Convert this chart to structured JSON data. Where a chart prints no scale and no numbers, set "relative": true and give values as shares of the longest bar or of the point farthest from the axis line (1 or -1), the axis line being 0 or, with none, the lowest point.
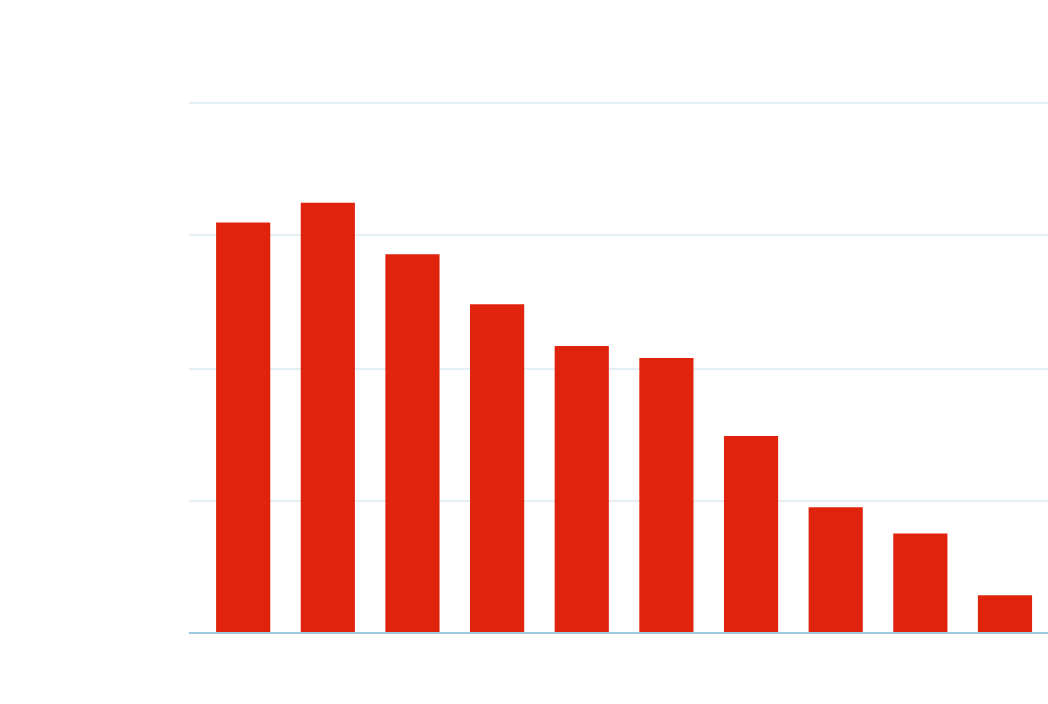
{
  "chart_data": {
    "type": "bar",
    "relative": true,
    "categories": [
      null,
      null,
      null,
      null,
      null,
      null,
      null,
      null,
      null,
      null
    ],
    "series": [
      {
        "color": "#e0230d",
        "values": [
          0.954,
          1,
          0.88,
          0.764,
          0.667,
          0.639,
          0.458,
          0.292,
          0.231,
          0.088
        ]
      }
    ],
    "grid": "y"
  }
}
